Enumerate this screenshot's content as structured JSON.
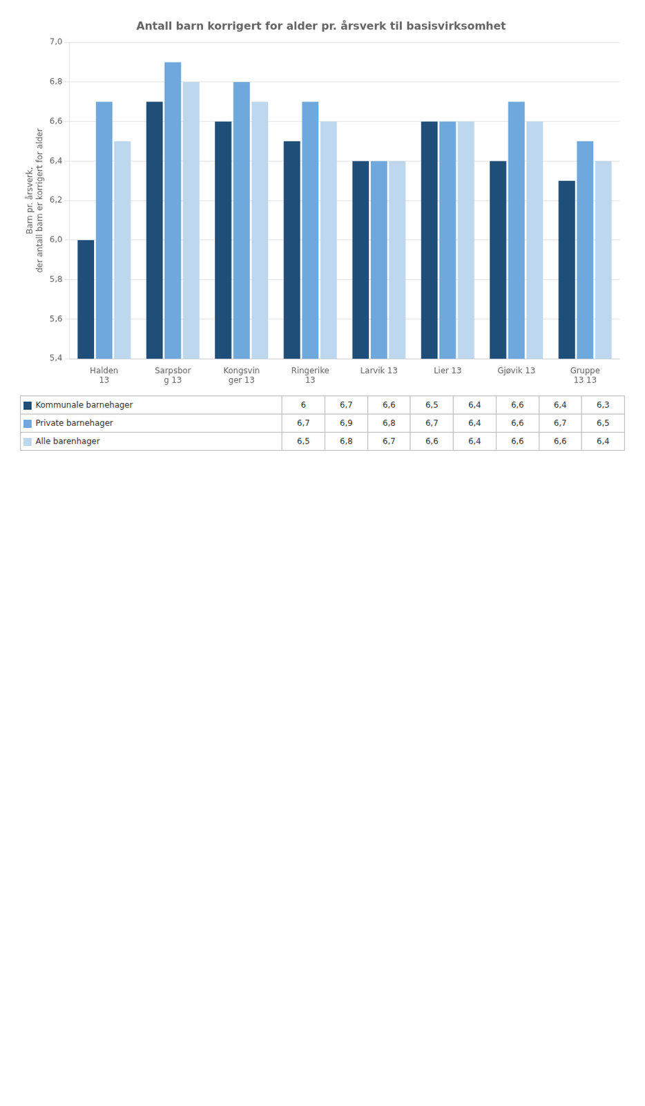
{
  "chart_data": {
    "type": "bar",
    "title": "Antall barn korrigert for alder pr. årsverk til basisvirksomhet",
    "ylabel": "Barn pr. årsverk,\nder antall barn er korrigert for alder",
    "categories": [
      "Halden\n13",
      "Sarpsbor\ng 13",
      "Kongsvin\nger 13",
      "Ringerike\n13",
      "Larvik 13",
      "Lier 13",
      "Gjøvik 13",
      "Gruppe\n13 13"
    ],
    "series": [
      {
        "name": "Kommunale barnehager",
        "color": "#1F4E79",
        "values": [
          6.0,
          6.7,
          6.6,
          6.5,
          6.4,
          6.6,
          6.4,
          6.3
        ],
        "value_labels": [
          "6",
          "6,7",
          "6,6",
          "6,5",
          "6,4",
          "6,6",
          "6,4",
          "6,3"
        ]
      },
      {
        "name": "Private barnehager",
        "color": "#6FA8DC",
        "values": [
          6.7,
          6.9,
          6.8,
          6.7,
          6.4,
          6.6,
          6.7,
          6.5
        ],
        "value_labels": [
          "6,7",
          "6,9",
          "6,8",
          "6,7",
          "6,4",
          "6,6",
          "6,7",
          "6,5"
        ]
      },
      {
        "name": "Alle barenhager",
        "color": "#BDD7EE",
        "values": [
          6.5,
          6.8,
          6.7,
          6.6,
          6.4,
          6.6,
          6.6,
          6.4
        ],
        "value_labels": [
          "6,5",
          "6,8",
          "6,7",
          "6,6",
          "6,4",
          "6,6",
          "6,6",
          "6,4"
        ]
      }
    ],
    "ylim": [
      5.4,
      7.0
    ],
    "yticks": [
      {
        "value": 5.4,
        "label": "5,4"
      },
      {
        "value": 5.6,
        "label": "5,6"
      },
      {
        "value": 5.8,
        "label": "5,8"
      },
      {
        "value": 6.0,
        "label": "6,0"
      },
      {
        "value": 6.2,
        "label": "6,2"
      },
      {
        "value": 6.4,
        "label": "6,4"
      },
      {
        "value": 6.6,
        "label": "6,6"
      },
      {
        "value": 6.8,
        "label": "6,8"
      },
      {
        "value": 7.0,
        "label": "7,0"
      }
    ],
    "grid": true,
    "legend": "bottom"
  }
}
